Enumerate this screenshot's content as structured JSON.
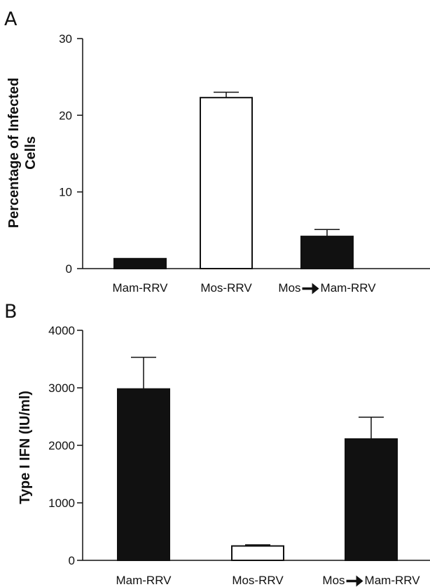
{
  "chart_data": [
    {
      "type": "bar",
      "panel_label": "A",
      "ylabel_lines": [
        "Percentage of Infected",
        "Cells"
      ],
      "categories": [
        {
          "prefix": "",
          "suffix": "Mam-RRV"
        },
        {
          "prefix": "",
          "suffix": "Mos-RRV"
        },
        {
          "prefix": "Mos",
          "suffix": "Mam-RRV"
        }
      ],
      "values": [
        1.3,
        22.3,
        4.2
      ],
      "errors": [
        0,
        0.7,
        0.9
      ],
      "fills": [
        "#111111",
        "#ffffff",
        "#111111"
      ],
      "ylim": [
        0,
        30
      ],
      "yticks": [
        0,
        10,
        20,
        30
      ]
    },
    {
      "type": "bar",
      "panel_label": "B",
      "ylabel_lines": [
        "Type I IFN (IU/ml)"
      ],
      "categories": [
        {
          "prefix": "",
          "suffix": "Mam-RRV"
        },
        {
          "prefix": "",
          "suffix": "Mos-RRV"
        },
        {
          "prefix": "Mos",
          "suffix": "Mam-RRV"
        }
      ],
      "values": [
        2980,
        250,
        2110
      ],
      "errors": [
        550,
        20,
        380
      ],
      "fills": [
        "#111111",
        "#ffffff",
        "#111111"
      ],
      "ylim": [
        0,
        4000
      ],
      "yticks": [
        0,
        1000,
        2000,
        3000,
        4000
      ]
    }
  ]
}
